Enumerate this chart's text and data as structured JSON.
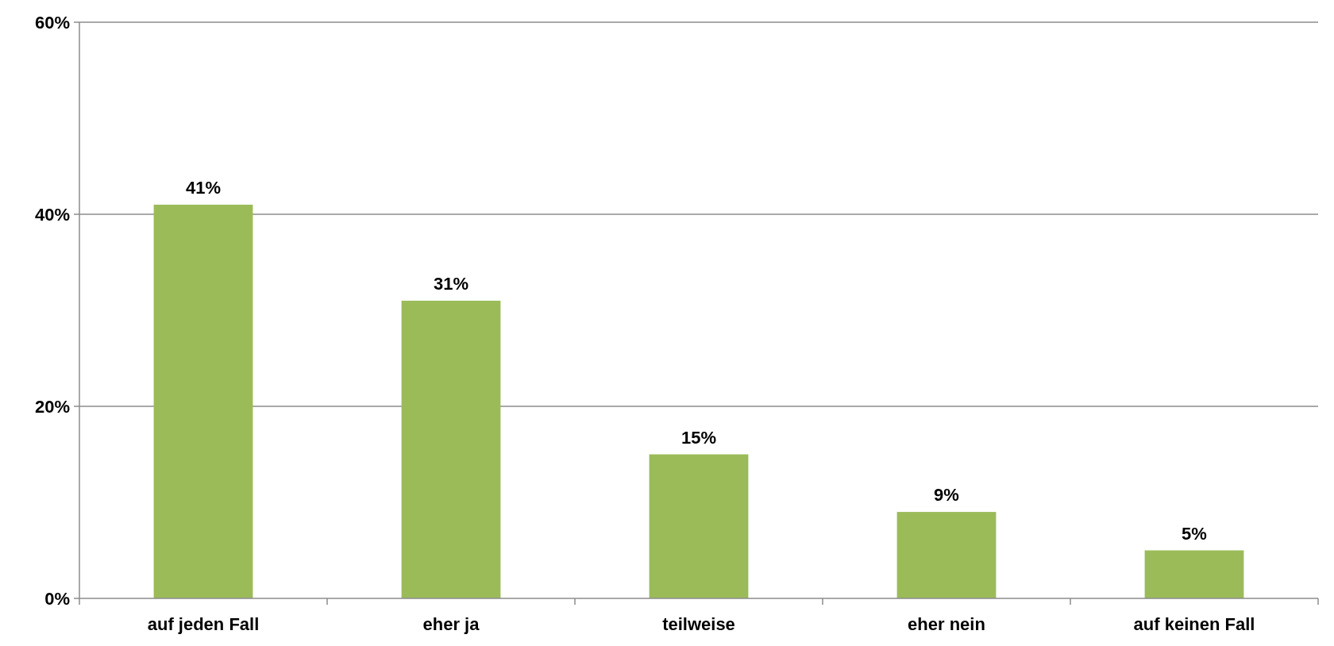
{
  "chart_data": {
    "type": "bar",
    "categories": [
      "auf jeden Fall",
      "eher ja",
      "teilweise",
      "eher nein",
      "auf keinen Fall"
    ],
    "values": [
      41,
      31,
      15,
      9,
      5
    ],
    "color": "#9bbb59",
    "ylim": [
      0,
      60
    ],
    "yticks": [
      {
        "value": 0,
        "label": "0%"
      },
      {
        "value": 20,
        "label": "20%"
      },
      {
        "value": 40,
        "label": "40%"
      },
      {
        "value": 60,
        "label": "60%"
      }
    ],
    "grid": "y",
    "value_labels": [
      "41%",
      "31%",
      "15%",
      "9%",
      "5%"
    ]
  }
}
